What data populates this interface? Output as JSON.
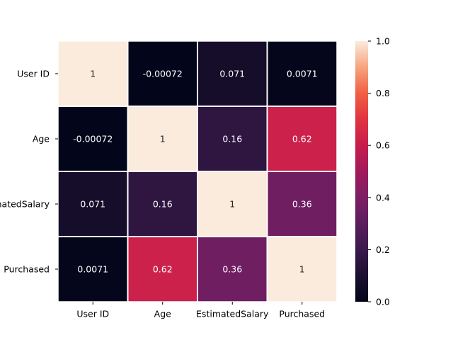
{
  "chart_data": {
    "type": "heatmap",
    "title": "",
    "xlabel": "",
    "ylabel": "",
    "x_categories": [
      "User ID",
      "Age",
      "EstimatedSalary",
      "Purchased"
    ],
    "y_categories": [
      "User ID",
      "Age",
      "EstimatedSalary",
      "Purchased"
    ],
    "values": [
      [
        1,
        -0.00072,
        0.071,
        0.0071
      ],
      [
        -0.00072,
        1,
        0.16,
        0.62
      ],
      [
        0.071,
        0.16,
        1,
        0.36
      ],
      [
        0.0071,
        0.62,
        0.36,
        1
      ]
    ],
    "annotations": [
      [
        "1",
        "-0.00072",
        "0.071",
        "0.0071"
      ],
      [
        "-0.00072",
        "1",
        "0.16",
        "0.62"
      ],
      [
        "0.071",
        "0.16",
        "1",
        "0.36"
      ],
      [
        "0.0071",
        "0.62",
        "0.36",
        "1"
      ]
    ],
    "colorbar": {
      "range": [
        0.0,
        1.0
      ],
      "ticks": [
        "0.0",
        "0.2",
        "0.4",
        "0.6",
        "0.8",
        "1.0"
      ],
      "colormap": "rocket"
    },
    "grid": false,
    "cell_separator_color": "#ffffff"
  }
}
